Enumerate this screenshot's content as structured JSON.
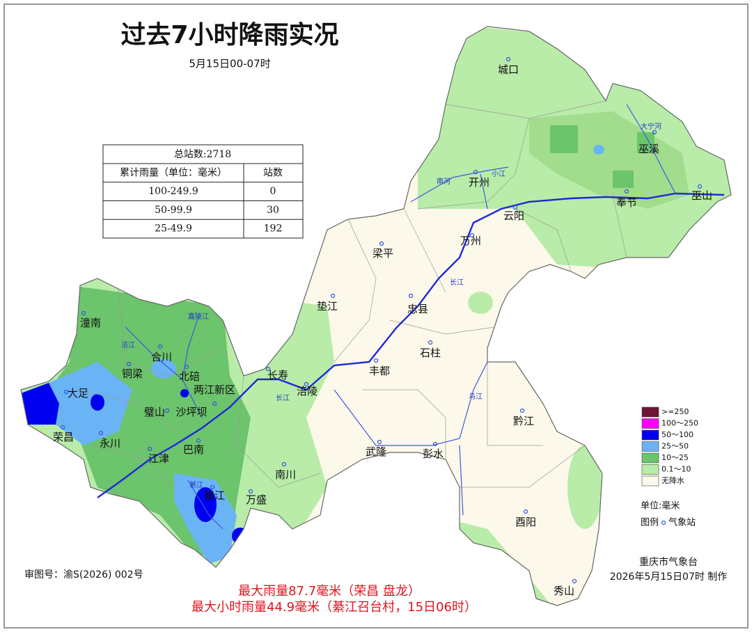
{
  "header": {
    "title": "过去7小时降雨实况",
    "subtitle": "5月15日00-07时"
  },
  "table": {
    "total": "总站数:2718",
    "columns": [
      "累计雨量（单位：毫米）",
      "站数"
    ],
    "rows": [
      [
        "100-249.9",
        0
      ],
      [
        "50-99.9",
        30
      ],
      [
        "25-49.9",
        192
      ]
    ]
  },
  "legend": {
    "items": [
      {
        "label": ">=250",
        "color": "#6e1533"
      },
      {
        "label": "100～250",
        "color": "#ff00ff"
      },
      {
        "label": "50～100",
        "color": "#0000f0"
      },
      {
        "label": "25～50",
        "color": "#6ab4f5"
      },
      {
        "label": "10～25",
        "color": "#6cc46c"
      },
      {
        "label": "0.1～10",
        "color": "#b8eca8"
      },
      {
        "label": "无降水",
        "color": "#fcf8ea"
      }
    ],
    "unit": "单位:毫米",
    "key": "图例",
    "station": "气象站"
  },
  "cities": [
    "城口",
    "开州",
    "云阳",
    "奉节",
    "巫溪",
    "巫山",
    "万州",
    "梁平",
    "忠县",
    "垫江",
    "石柱",
    "丰都",
    "涪陵",
    "长寿",
    "潼南",
    "合川",
    "铜梁",
    "北碚",
    "两江新区",
    "大足",
    "荣昌",
    "永川",
    "璧山",
    "沙坪坝",
    "江津",
    "巴南",
    "綦江",
    "万盛",
    "南川",
    "武隆",
    "彭水",
    "黔江",
    "酉阳",
    "秀山"
  ],
  "rivers": [
    "大宁河",
    "小江",
    "南河",
    "长江",
    "长江",
    "乌江",
    "涪江",
    "嘉陵江",
    "綦江"
  ],
  "footer": {
    "approval": "审图号：渝S(2026) 002号",
    "agency": "重庆市气象台",
    "made": "2026年5月15日07时 制作",
    "max_total": "最大雨量87.7毫米（荣昌 盘龙）",
    "max_hourly": "最大小时雨量44.9毫米（綦江召台村，15日06时）"
  }
}
